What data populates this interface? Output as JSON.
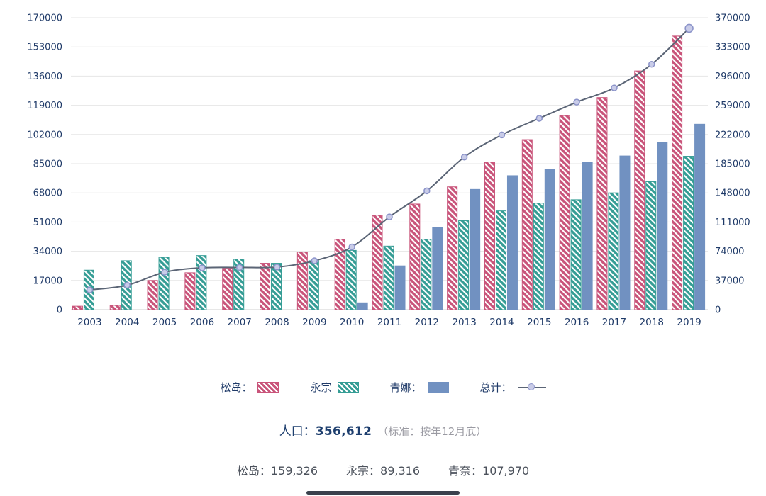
{
  "chart_data": {
    "type": "bar",
    "title": "",
    "categories": [
      "2003",
      "2004",
      "2005",
      "2006",
      "2007",
      "2008",
      "2009",
      "2010",
      "2011",
      "2012",
      "2013",
      "2014",
      "2015",
      "2016",
      "2017",
      "2018",
      "2019"
    ],
    "series": [
      {
        "name": "松岛",
        "type": "bar",
        "hatch": true,
        "color": "#c9547a",
        "values": [
          2000,
          2500,
          17000,
          21500,
          24000,
          27000,
          33500,
          41000,
          55000,
          61500,
          71500,
          86000,
          99000,
          113000,
          123500,
          139000,
          159326
        ]
      },
      {
        "name": "永宗",
        "type": "bar",
        "hatch": true,
        "color": "#359d95",
        "values": [
          23000,
          28500,
          30500,
          31500,
          29500,
          27000,
          28500,
          34500,
          37000,
          41000,
          51800,
          57500,
          62000,
          64000,
          68000,
          74500,
          89316
        ]
      },
      {
        "name": "青娜",
        "type": "bar",
        "hatch": false,
        "color": "#7191c1",
        "values": [
          0,
          0,
          0,
          0,
          0,
          0,
          0,
          4000,
          25500,
          48000,
          70000,
          78000,
          81500,
          86000,
          89500,
          97500,
          107970
        ]
      },
      {
        "name": "总计",
        "type": "line",
        "axis": "right",
        "color": "#5b6576",
        "marker_fill": "#c9cce8",
        "marker_stroke": "#8b93c9",
        "values": [
          25000,
          31000,
          47500,
          53000,
          53500,
          54000,
          62000,
          79500,
          117500,
          150500,
          193300,
          221500,
          242500,
          263000,
          281000,
          311000,
          356612
        ]
      }
    ],
    "left_axis": {
      "min": 0,
      "max": 170000,
      "ticks": [
        0,
        17000,
        34000,
        51000,
        68000,
        85000,
        102000,
        119000,
        136000,
        153000,
        170000
      ]
    },
    "right_axis": {
      "min": 0,
      "max": 370000,
      "ticks": [
        0,
        37000,
        74000,
        111000,
        148000,
        185000,
        222000,
        259000,
        296000,
        333000,
        370000
      ]
    },
    "grid": true,
    "legend_position": "bottom",
    "axis_text_color": "#1f3a68",
    "grid_color": "#e6e6e6",
    "xlabel": "",
    "ylabel": ""
  },
  "legend": {
    "items": [
      {
        "label": "松岛：",
        "swatch": "hatch-pink"
      },
      {
        "label": "永宗",
        "swatch": "hatch-teal"
      },
      {
        "label": "青娜：",
        "swatch": "solid-blue"
      },
      {
        "label": "总计：",
        "swatch": "line-marker"
      }
    ]
  },
  "summary": {
    "label": "人口：",
    "value": "356,612",
    "note": "（标准：按年12月底）"
  },
  "footer": {
    "items": [
      {
        "label": "松岛：",
        "value": "159,326"
      },
      {
        "label": "永宗：",
        "value": "89,316"
      },
      {
        "label": "青奈：",
        "value": "107,970"
      }
    ]
  }
}
